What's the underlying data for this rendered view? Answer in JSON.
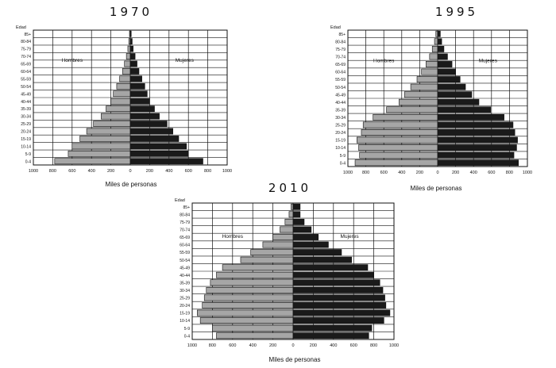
{
  "figure": {
    "background": "#ffffff",
    "female_color": "#1a1a1a",
    "male_color": "#a6a6a6",
    "outline_color": "#111111"
  },
  "chart_data": [
    {
      "type": "bar",
      "title": "1970",
      "ylabel": "Edad",
      "xlabel": "Miles de personas",
      "left_label": "Hombres",
      "right_label": "Mujeres",
      "age_groups": [
        "0-4",
        "5-9",
        "10-14",
        "15-19",
        "20-24",
        "25-29",
        "30-34",
        "35-39",
        "40-44",
        "45-49",
        "50-54",
        "55-59",
        "60-64",
        "65-69",
        "70-74",
        "75-79",
        "80-84",
        "85+"
      ],
      "xlim": [
        -1000,
        1000
      ],
      "xticks": [
        -1000,
        -800,
        -600,
        -400,
        -200,
        0,
        200,
        400,
        600,
        800,
        1000
      ],
      "xtick_labels": [
        "1000",
        "800",
        "600",
        "400",
        "200",
        "0",
        "200",
        "400",
        "600",
        "800",
        "1000"
      ],
      "series": [
        {
          "name": "Hombres",
          "values": [
            780,
            640,
            600,
            520,
            450,
            380,
            300,
            250,
            200,
            175,
            140,
            110,
            80,
            60,
            40,
            25,
            15,
            8
          ]
        },
        {
          "name": "Mujeres",
          "values": [
            750,
            600,
            580,
            500,
            440,
            380,
            300,
            250,
            200,
            175,
            150,
            120,
            90,
            70,
            50,
            30,
            20,
            10
          ]
        }
      ]
    },
    {
      "type": "bar",
      "title": "1995",
      "ylabel": "Edad",
      "xlabel": "Miles de personas",
      "left_label": "Hombres",
      "right_label": "Mujeres",
      "age_groups": [
        "0-4",
        "5-9",
        "10-14",
        "15-19",
        "20-24",
        "25-29",
        "30-34",
        "35-39",
        "40-44",
        "45-49",
        "50-54",
        "55-59",
        "60-64",
        "65-69",
        "70-74",
        "75-79",
        "80-84",
        "85+"
      ],
      "xlim": [
        -1000,
        1000
      ],
      "xticks": [
        -1000,
        -800,
        -600,
        -400,
        -200,
        0,
        200,
        400,
        600,
        800,
        1000
      ],
      "xtick_labels": [
        "1000",
        "800",
        "600",
        "400",
        "200",
        "0",
        "200",
        "400",
        "600",
        "800",
        "1000"
      ],
      "series": [
        {
          "name": "Hombres",
          "values": [
            920,
            870,
            880,
            900,
            850,
            830,
            720,
            570,
            430,
            370,
            300,
            230,
            180,
            130,
            90,
            60,
            35,
            20
          ]
        },
        {
          "name": "Mujeres",
          "values": [
            900,
            850,
            880,
            890,
            860,
            840,
            740,
            590,
            460,
            380,
            310,
            250,
            200,
            160,
            110,
            70,
            45,
            30
          ]
        }
      ]
    },
    {
      "type": "bar",
      "title": "2010",
      "ylabel": "Edad",
      "xlabel": "Miles de personas",
      "left_label": "Hombres",
      "right_label": "Mujeres",
      "age_groups": [
        "0-4",
        "5-9",
        "10-14",
        "15-19",
        "20-24",
        "25-29",
        "30-34",
        "35-39",
        "40-44",
        "45-49",
        "50-54",
        "55-59",
        "60-64",
        "65-69",
        "70-74",
        "75-79",
        "80-84",
        "85+"
      ],
      "xlim": [
        -1000,
        1000
      ],
      "xticks": [
        -1000,
        -800,
        -600,
        -400,
        -200,
        0,
        200,
        400,
        600,
        800,
        1000
      ],
      "xtick_labels": [
        "1000",
        "800",
        "600",
        "400",
        "200",
        "0",
        "200",
        "400",
        "600",
        "800",
        "1000"
      ],
      "series": [
        {
          "name": "Hombres",
          "values": [
            760,
            800,
            920,
            950,
            900,
            880,
            860,
            820,
            760,
            700,
            520,
            420,
            300,
            200,
            130,
            80,
            40,
            20
          ]
        },
        {
          "name": "Mujeres",
          "values": [
            750,
            780,
            900,
            960,
            920,
            910,
            890,
            860,
            800,
            740,
            580,
            480,
            350,
            250,
            180,
            110,
            70,
            70
          ]
        }
      ]
    }
  ]
}
